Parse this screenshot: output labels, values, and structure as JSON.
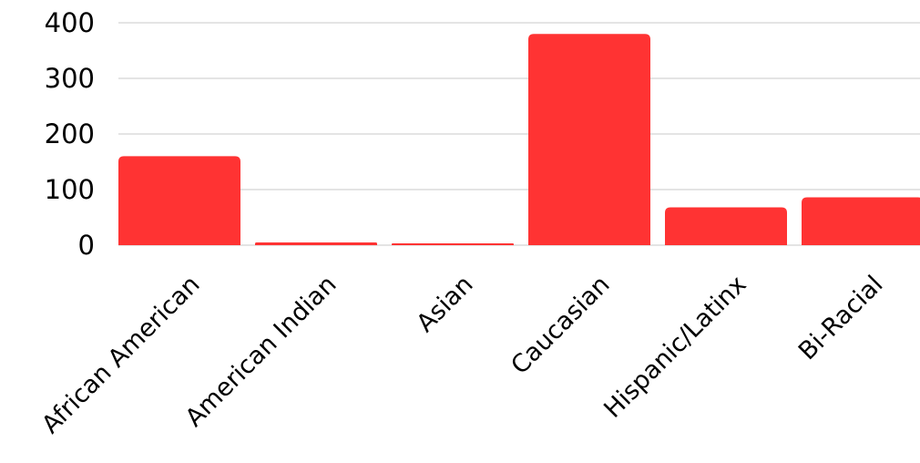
{
  "chart_data": {
    "type": "bar",
    "title": "",
    "xlabel": "",
    "ylabel": "",
    "categories": [
      "African American",
      "American Indian",
      "Asian",
      "Caucasian",
      "Hispanic/Latinx",
      "Bi-Racial"
    ],
    "values": [
      160,
      5,
      3,
      380,
      68,
      86
    ],
    "ylim": [
      0,
      400
    ],
    "yticks": [
      "0",
      "100",
      "200",
      "300",
      "400"
    ],
    "grid": true,
    "legend": "none",
    "bar_color": "#ff3333"
  }
}
